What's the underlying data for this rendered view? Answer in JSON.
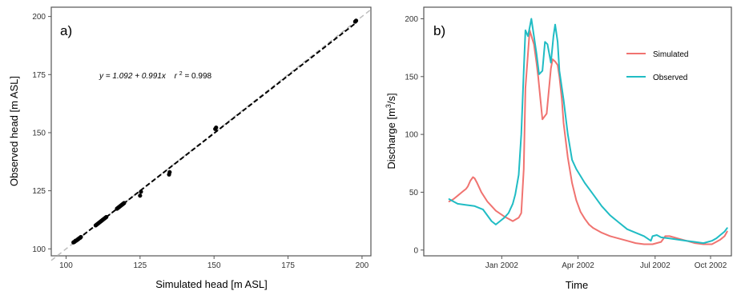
{
  "chart_data": [
    {
      "panel_label": "a)",
      "type": "scatter",
      "xlabel": "Simulated head [m ASL]",
      "ylabel": "Observed head [m ASL]",
      "xlim": [
        95,
        203
      ],
      "ylim": [
        97,
        204
      ],
      "xticks": [
        100,
        125,
        150,
        175,
        200
      ],
      "yticks": [
        100,
        125,
        150,
        175,
        200
      ],
      "annotation": "y = 1.092 + 0.991x   r² = 0.998",
      "annotation_parts": {
        "eq": "y = 1.092 + 0.991x",
        "r_label": "r",
        "r_sup": "2",
        "r_value": " = 0.998"
      },
      "fit_line": {
        "intercept": 1.092,
        "slope": 0.991
      },
      "reference_line": {
        "intercept": 0,
        "slope": 1
      },
      "points_x": [
        102.5,
        102.8,
        103.0,
        103.2,
        103.5,
        103.8,
        104.0,
        104.2,
        104.5,
        104.8,
        105.0,
        110.0,
        110.3,
        110.6,
        110.9,
        111.2,
        111.5,
        111.8,
        112.1,
        112.4,
        112.7,
        113.0,
        113.3,
        113.6,
        117.2,
        117.5,
        117.8,
        118.1,
        118.4,
        118.7,
        119.0,
        119.3,
        119.6,
        125.0,
        125.3,
        134.8,
        135.0,
        150.4,
        150.7,
        197.7,
        198.0
      ],
      "points_y": [
        102.8,
        103.0,
        103.2,
        103.5,
        103.6,
        103.9,
        104.1,
        104.3,
        104.6,
        104.8,
        105.1,
        110.1,
        110.4,
        110.7,
        111.0,
        111.3,
        111.6,
        111.9,
        112.2,
        112.5,
        112.8,
        113.1,
        113.4,
        113.7,
        117.3,
        117.6,
        117.9,
        118.2,
        118.5,
        118.8,
        119.1,
        119.4,
        119.7,
        122.9,
        124.6,
        132.0,
        133.0,
        151.6,
        152.2,
        197.8,
        198.2
      ],
      "colors": {
        "points": "#000000",
        "fit_line": "#000000",
        "reference_line": "#bdbdbd"
      }
    },
    {
      "panel_label": "b)",
      "type": "line",
      "xlabel": "Time",
      "ylabel_parts": {
        "pre": "Discharge [m",
        "sup": "3",
        "post": "/s]"
      },
      "ylim": [
        -5,
        210
      ],
      "yticks": [
        0,
        50,
        100,
        150,
        200
      ],
      "xlim": [
        0,
        363
      ],
      "x_units": "days from 1 Oct 2001",
      "xticks": [
        {
          "value": 92,
          "label": "Jan 2002"
        },
        {
          "value": 182,
          "label": "Apr 2002"
        },
        {
          "value": 273,
          "label": "Jul 2002"
        },
        {
          "value": 365,
          "label": "Oct 2002"
        }
      ],
      "legend_position": "top-right",
      "series": [
        {
          "name": "Simulated",
          "color": "#f07370",
          "x": [
            30,
            35,
            40,
            45,
            50,
            52,
            55,
            58,
            60,
            63,
            68,
            75,
            85,
            95,
            105,
            112,
            115,
            118,
            120,
            125,
            130,
            133,
            135,
            140,
            145,
            150,
            152,
            155,
            158,
            160,
            163,
            165,
            170,
            175,
            180,
            185,
            190,
            195,
            200,
            210,
            220,
            230,
            240,
            250,
            260,
            270,
            280,
            285,
            290,
            300,
            310,
            320,
            330,
            340,
            345,
            350,
            355,
            358
          ],
          "y": [
            42,
            44,
            47,
            50,
            53,
            55,
            60,
            63,
            62,
            58,
            50,
            42,
            34,
            29,
            25,
            28,
            32,
            70,
            140,
            190,
            178,
            162,
            150,
            113,
            118,
            157,
            165,
            163,
            160,
            150,
            130,
            110,
            80,
            58,
            43,
            33,
            27,
            22,
            19,
            15,
            12,
            10,
            8,
            6,
            5,
            5,
            7,
            12,
            12,
            10,
            8,
            6,
            5,
            5,
            7,
            9,
            12,
            16
          ]
        },
        {
          "name": "Observed",
          "color": "#20bcc4",
          "x": [
            30,
            35,
            40,
            50,
            60,
            70,
            75,
            80,
            85,
            90,
            95,
            100,
            105,
            108,
            112,
            115,
            118,
            120,
            123,
            127,
            130,
            133,
            136,
            140,
            143,
            146,
            150,
            153,
            155,
            158,
            160,
            165,
            170,
            175,
            180,
            190,
            200,
            210,
            220,
            230,
            240,
            260,
            268,
            270,
            275,
            280,
            290,
            300,
            310,
            320,
            330,
            340,
            345,
            350,
            355,
            358
          ],
          "y": [
            44,
            42,
            40,
            39,
            38,
            35,
            30,
            25,
            22,
            25,
            28,
            32,
            40,
            48,
            65,
            100,
            155,
            190,
            185,
            200,
            185,
            170,
            152,
            155,
            180,
            178,
            162,
            185,
            195,
            180,
            155,
            130,
            100,
            78,
            70,
            58,
            48,
            38,
            30,
            24,
            18,
            12,
            8,
            12,
            13,
            11,
            10,
            9,
            8,
            7,
            6,
            8,
            10,
            13,
            16,
            19
          ]
        }
      ]
    }
  ]
}
